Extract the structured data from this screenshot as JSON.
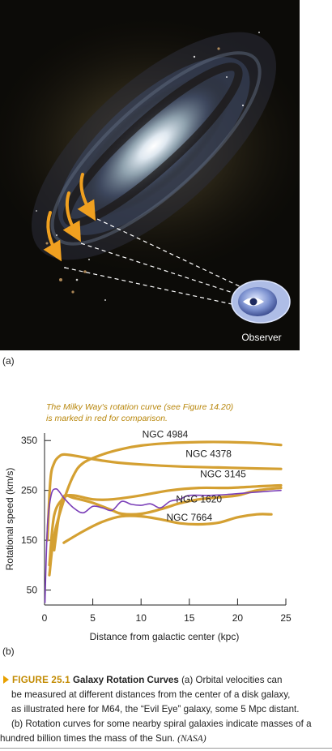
{
  "figure": {
    "panel_a_label": "(a)",
    "panel_b_label": "(b)",
    "observer_label": "Observer",
    "caption": {
      "number": "FIGURE 25.1",
      "title": "Galaxy Rotation Curves",
      "line1": "(a) Orbital velocities can",
      "line2": "be measured at different distances from the center of a disk galaxy,",
      "line3": "as illustrated here for M64, the “Evil Eye” galaxy, some 5 Mpc distant.",
      "line4": "(b) Rotation curves for some nearby spiral galaxies indicate masses of a",
      "line5": "hundred billion times the mass of the Sun.",
      "credit": "(NASA)"
    }
  },
  "colors": {
    "galaxy_curve": "#d4a032",
    "milky_way": "#7b3fb8",
    "annotation": "#b8860b",
    "arrow": "#f0a020",
    "observer_disk": "#6f86c8"
  },
  "chart_data": {
    "type": "line",
    "title": "",
    "annotation": [
      "The Milky Way's rotation curve (see Figure 14.20)",
      "is marked in red for comparison."
    ],
    "xlabel": "Distance from galactic center (kpc)",
    "ylabel": "Rotational speed (km/s)",
    "xlim": [
      0,
      25
    ],
    "ylim": [
      20,
      365
    ],
    "xticks": [
      0,
      5,
      10,
      15,
      20,
      25
    ],
    "yticks": [
      50,
      150,
      250,
      350
    ],
    "series": [
      {
        "name": "NGC 4984",
        "color": "#d4a032",
        "x": [
          0.5,
          1,
          2,
          3,
          4,
          6,
          8,
          10,
          13,
          16,
          19,
          22,
          24.5
        ],
        "y": [
          80,
          160,
          230,
          280,
          305,
          322,
          333,
          340,
          345,
          347,
          347,
          345,
          341
        ]
      },
      {
        "name": "NGC 4378",
        "color": "#d4a032",
        "x": [
          0.3,
          0.6,
          1,
          1.5,
          2,
          3,
          5,
          7,
          10,
          14,
          18,
          22,
          24.5
        ],
        "y": [
          150,
          270,
          305,
          318,
          322,
          320,
          313,
          307,
          302,
          298,
          296,
          294,
          293
        ]
      },
      {
        "name": "NGC 3145",
        "color": "#d4a032",
        "x": [
          0.5,
          1,
          2,
          3,
          5,
          7,
          10,
          13,
          16,
          19,
          22,
          24.5
        ],
        "y": [
          100,
          200,
          235,
          240,
          232,
          232,
          240,
          250,
          255,
          255,
          258,
          260
        ]
      },
      {
        "name": "NGC 1620",
        "color": "#d4a032",
        "x": [
          1,
          1.5,
          2,
          3,
          5,
          7,
          8,
          10,
          12,
          14,
          16,
          18,
          20,
          22,
          24.5
        ],
        "y": [
          130,
          200,
          238,
          235,
          225,
          210,
          203,
          203,
          212,
          224,
          232,
          236,
          240,
          250,
          255
        ]
      },
      {
        "name": "NGC 7664",
        "color": "#d4a032",
        "x": [
          2,
          4,
          6,
          8,
          10,
          12,
          14,
          16,
          18,
          20,
          22,
          23.5
        ],
        "y": [
          145,
          168,
          187,
          198,
          198,
          192,
          184,
          182,
          185,
          196,
          202,
          202
        ]
      },
      {
        "name": "",
        "color": "#7b3fb8",
        "x": [
          0.05,
          0.15,
          0.3,
          0.5,
          0.8,
          1.2,
          1.5,
          2,
          3,
          4,
          5,
          6,
          7,
          8,
          9,
          10,
          11,
          12,
          13,
          14,
          15,
          17,
          19,
          21,
          23,
          24.5
        ],
        "y": [
          25,
          100,
          180,
          220,
          248,
          253,
          248,
          235,
          215,
          205,
          218,
          215,
          210,
          228,
          222,
          220,
          223,
          215,
          228,
          232,
          240,
          240,
          242,
          245,
          248,
          250
        ]
      }
    ],
    "label_positions": [
      {
        "series": 0,
        "x": 12.5,
        "y": 356
      },
      {
        "series": 1,
        "x": 17,
        "y": 317
      },
      {
        "series": 2,
        "x": 18.5,
        "y": 276
      },
      {
        "series": 3,
        "x": 16,
        "y": 226
      },
      {
        "series": 4,
        "x": 15,
        "y": 189
      }
    ],
    "grid": false,
    "legend": "inline labels"
  }
}
